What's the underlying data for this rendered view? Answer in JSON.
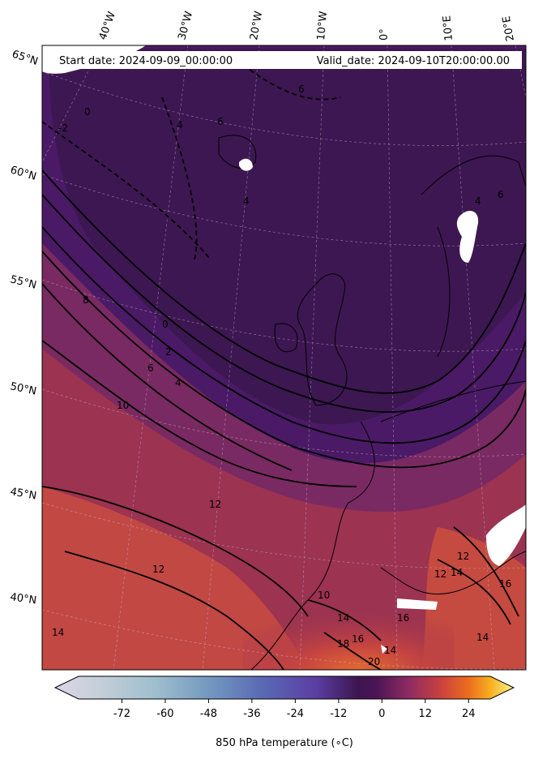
{
  "header": {
    "start_date": "Start date: 2024-09-09_00:00:00",
    "valid_date": "Valid_date: 2024-09-10T20:00:00.00"
  },
  "graticule": {
    "longitude_labels": [
      "40°W",
      "30°W",
      "20°W",
      "10°W",
      "0°",
      "10°E",
      "20°E"
    ],
    "latitude_labels": [
      "65°N",
      "60°N",
      "55°N",
      "50°N",
      "45°N",
      "40°N"
    ]
  },
  "contour_labels": [
    "0",
    "-2",
    "4",
    "6",
    "6",
    "4",
    "6",
    "4",
    "8",
    "0",
    "2",
    "6",
    "4",
    "10",
    "12",
    "14",
    "12",
    "10",
    "14",
    "16",
    "18",
    "20",
    "14",
    "16",
    "12",
    "14",
    "16",
    "14",
    "12"
  ],
  "colorbar": {
    "title": "850 hPa temperature (∘C)",
    "colormap": "inferno-extended",
    "extend": "both",
    "range": [
      -84,
      30
    ],
    "ticks": [
      "-72",
      "-60",
      "-48",
      "-36",
      "-24",
      "-12",
      "0",
      "12",
      "24"
    ],
    "tick_values": [
      -72,
      -60,
      -48,
      -36,
      -24,
      -12,
      0,
      12,
      24
    ]
  },
  "colors": {
    "cold_region": "#3d1752",
    "mid_region": "#7a2a62",
    "warm_region": "#c94542",
    "hot_region": "#e8652c",
    "contour": "#000000",
    "missing": "#ffffff"
  }
}
